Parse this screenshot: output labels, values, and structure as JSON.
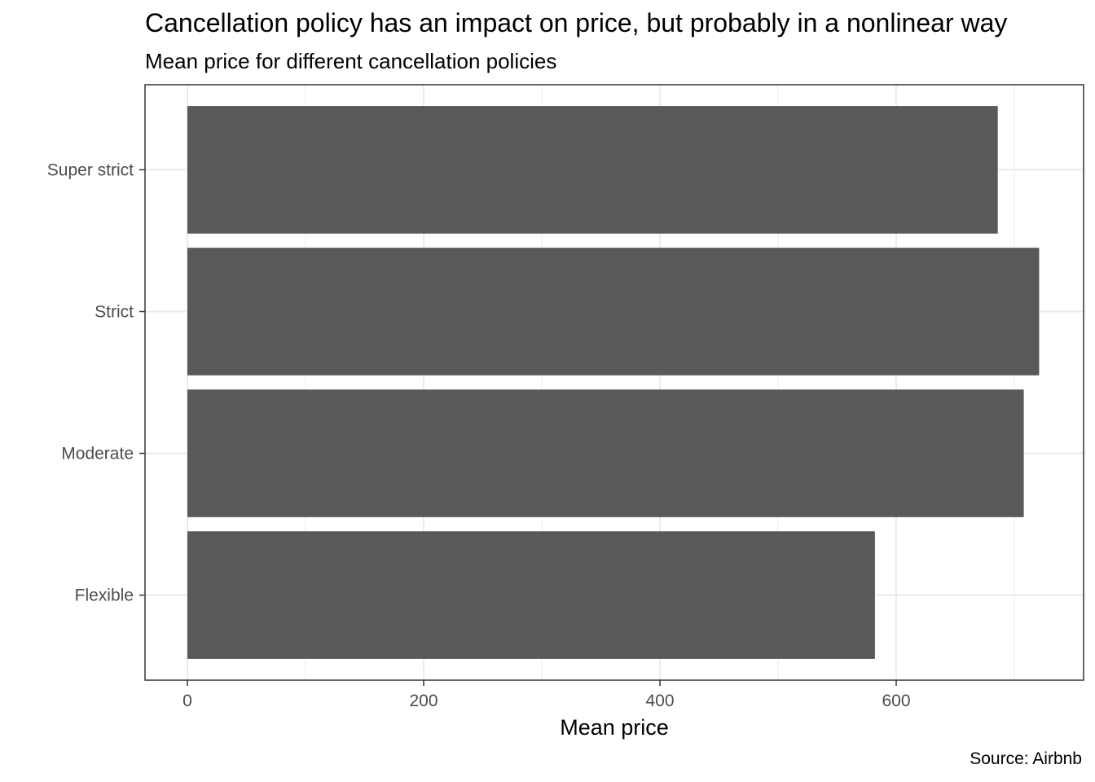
{
  "title": "Cancellation policy has an impact on price, but probably in a nonlinear way",
  "subtitle": "Mean price for different cancellation policies",
  "caption": "Source: Airbnb",
  "chart_data": {
    "type": "bar",
    "orientation": "horizontal",
    "categories": [
      "Flexible",
      "Moderate",
      "Strict",
      "Super strict"
    ],
    "values": [
      582,
      708,
      721,
      686
    ],
    "xlabel": "Mean price",
    "ylabel": "",
    "xlim": [
      0,
      760
    ],
    "x_ticks": [
      0,
      200,
      400,
      600
    ],
    "x_tick_labels": [
      "0",
      "200",
      "400",
      "600"
    ],
    "grid": true,
    "bar_color": "#595959",
    "grid_color": "#ebebeb",
    "panel_border_color": "#333333"
  }
}
